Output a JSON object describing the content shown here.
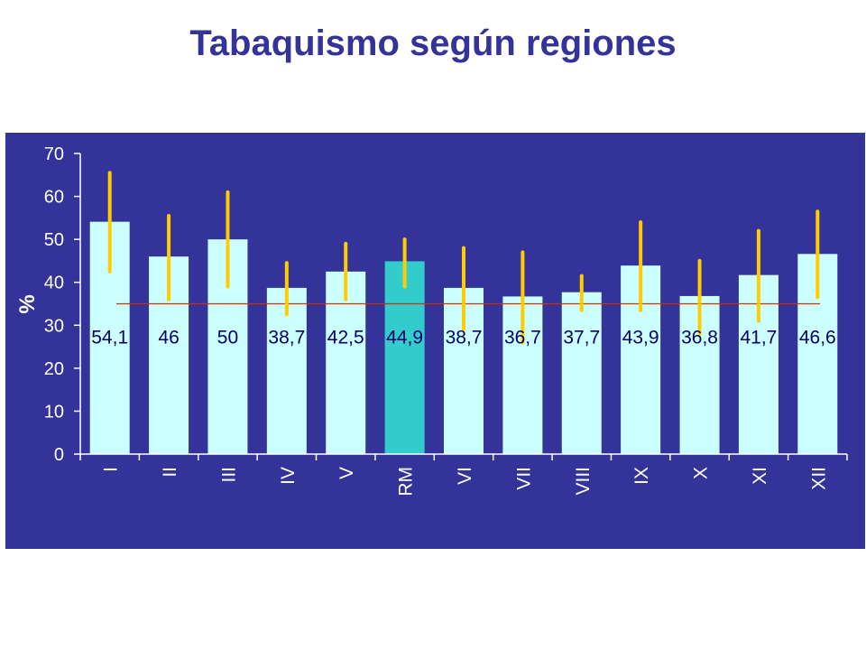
{
  "chart_data": {
    "type": "bar",
    "title": "Tabaquismo según regiones",
    "ylabel": "%",
    "xlabel": "",
    "ylim": [
      0,
      70
    ],
    "yticks": [
      0,
      10,
      20,
      30,
      40,
      50,
      60,
      70
    ],
    "categories": [
      "I",
      "II",
      "III",
      "IV",
      "V",
      "RM",
      "VI",
      "VII",
      "VIII",
      "IX",
      "X",
      "XI",
      "XII"
    ],
    "values": [
      54.1,
      46,
      50,
      38.7,
      42.5,
      44.9,
      38.7,
      36.7,
      37.7,
      43.9,
      36.8,
      41.7,
      46.6
    ],
    "value_labels": [
      "54,1",
      "46",
      "50",
      "38,7",
      "42,5",
      "44,9",
      "38,7",
      "36,7",
      "37,7",
      "43,9",
      "36,8",
      "41,7",
      "46,6"
    ],
    "error_low": [
      42.5,
      36,
      39,
      32.5,
      36,
      39,
      29,
      26,
      33.5,
      33.5,
      28,
      31,
      36.5
    ],
    "error_high": [
      65.5,
      55.5,
      61,
      44.5,
      49,
      50,
      48,
      47,
      41.5,
      54,
      45,
      52,
      56.5
    ],
    "reference_line": 35,
    "highlight_category": "RM",
    "colors": {
      "background": "#333399",
      "bar": "#ccffff",
      "highlight_bar": "#33cccc",
      "error_bar": "#ffcc00",
      "reference_line": "#cc3300",
      "axis": "#ffffff",
      "title": "#333399"
    }
  }
}
